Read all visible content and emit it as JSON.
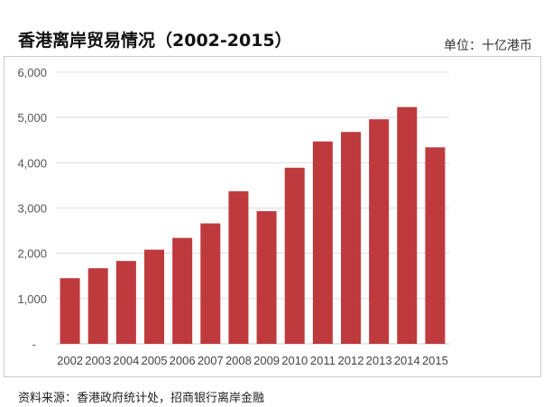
{
  "chart_data": {
    "type": "bar",
    "title": "香港离岸贸易情况（2002-2015）",
    "unit_label": "单位：十亿港币",
    "xlabel": "",
    "ylabel": "",
    "categories": [
      "2002",
      "2003",
      "2004",
      "2005",
      "2006",
      "2007",
      "2008",
      "2009",
      "2010",
      "2011",
      "2012",
      "2013",
      "2014",
      "2015"
    ],
    "values": [
      1450,
      1670,
      1830,
      2080,
      2340,
      2660,
      3370,
      2930,
      3890,
      4470,
      4680,
      4960,
      5230,
      4340
    ],
    "ylim": [
      0,
      6000
    ],
    "yticks": [
      0,
      1000,
      2000,
      3000,
      4000,
      5000,
      6000
    ],
    "ytick_labels": [
      "-",
      "1,000",
      "2,000",
      "3,000",
      "4,000",
      "5,000",
      "6,000"
    ],
    "grid": true,
    "bar_color": "#BE3A3C",
    "source": "资料来源：香港政府统计处，招商银行离岸金融"
  }
}
